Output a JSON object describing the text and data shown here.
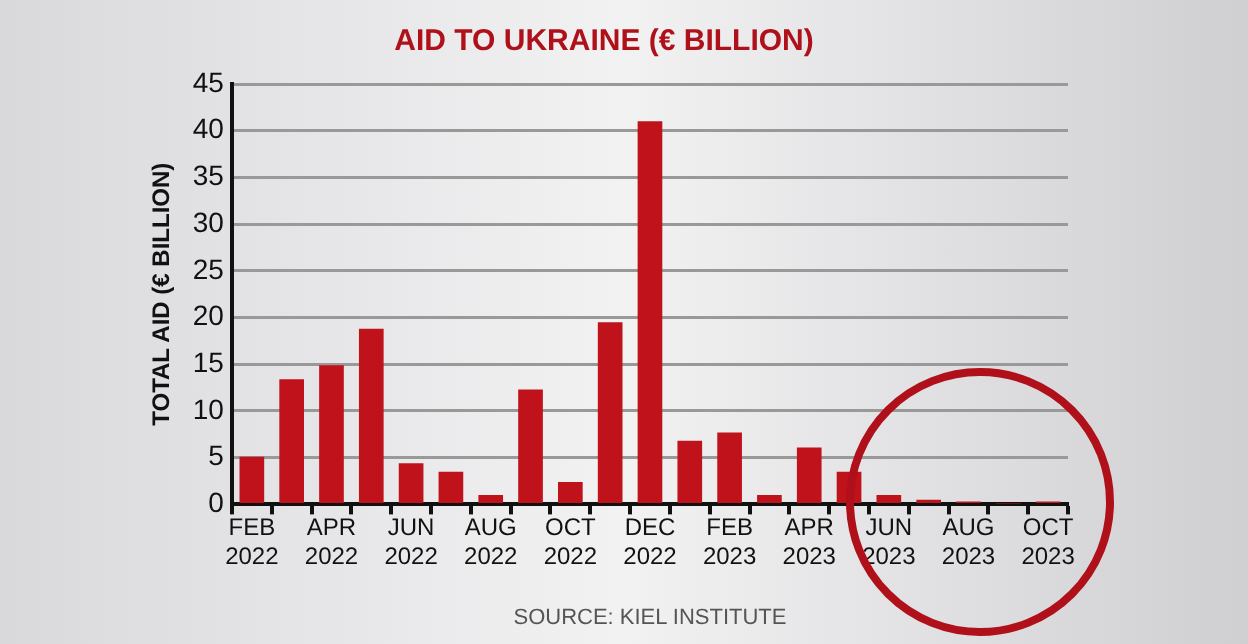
{
  "chart_data": {
    "type": "bar",
    "title": "AID TO UKRAINE (€ BILLION)",
    "ylabel": "TOTAL AID (€ BILLION)",
    "categories": [
      "FEB 2022",
      null,
      "APR 2022",
      null,
      "JUN 2022",
      null,
      "AUG 2022",
      null,
      "OCT 2022",
      null,
      "DEC 2022",
      null,
      "FEB 2023",
      null,
      "APR 2023",
      null,
      "JUN 2023",
      null,
      "AUG 2023",
      null,
      "OCT 2023"
    ],
    "values": [
      5.1,
      13.4,
      14.9,
      18.8,
      4.4,
      3.5,
      1.0,
      12.3,
      2.4,
      19.5,
      41.0,
      6.8,
      7.7,
      1.0,
      6.1,
      3.5,
      1.0,
      0.5,
      0.3,
      0.1,
      0.3
    ],
    "color": "#c0121b",
    "ylim": [
      0,
      45
    ],
    "yticks": [
      0,
      5,
      10,
      15,
      20,
      25,
      30,
      35,
      40,
      45
    ],
    "grid": "y",
    "annotations": [
      "SOURCE: KIEL INSTITUTE"
    ]
  }
}
